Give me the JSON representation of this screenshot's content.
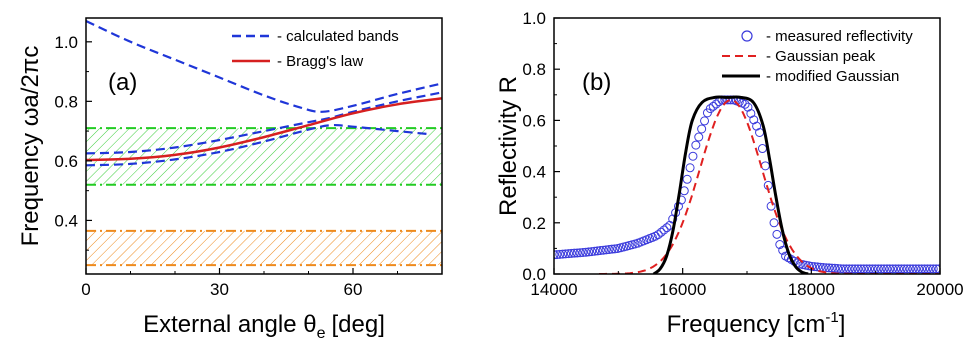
{
  "chart_data": [
    {
      "type": "line",
      "panel_label": "(a)",
      "xlabel": "External angle θ",
      "xlabel_sub": "e",
      "xlabel_unit": "[deg]",
      "ylabel": "Frequency ωa/2πc",
      "xlim": [
        0,
        80
      ],
      "ylim": [
        0.22,
        1.08
      ],
      "xticks": [
        0,
        30,
        60
      ],
      "yticks": [
        0.4,
        0.6,
        0.8,
        1.0
      ],
      "ytick_labels": [
        "0.4",
        "0.6",
        "0.8",
        "1.0"
      ],
      "legend_position": "top-right",
      "legend": [
        {
          "label": "- calculated bands",
          "style": "dashed",
          "color": "#1f36d8"
        },
        {
          "label": "- Bragg's law",
          "style": "solid",
          "color": "#d62020"
        }
      ],
      "series": [
        {
          "name": "- calculated bands",
          "role": "upper band",
          "color": "#1f36d8",
          "style": "dashed",
          "x": [
            0,
            10,
            20,
            30,
            40,
            48,
            53,
            60,
            70,
            80
          ],
          "y": [
            1.07,
            1.0,
            0.94,
            0.88,
            0.82,
            0.78,
            0.765,
            0.785,
            0.825,
            0.86
          ]
        },
        {
          "name": "- calculated bands",
          "role": "band 2",
          "color": "#1f36d8",
          "style": "dashed",
          "x": [
            0,
            10,
            20,
            30,
            40,
            50,
            55,
            60,
            70,
            80
          ],
          "y": [
            0.625,
            0.63,
            0.645,
            0.67,
            0.7,
            0.73,
            0.745,
            0.765,
            0.8,
            0.83
          ]
        },
        {
          "name": "- calculated bands",
          "role": "band 3",
          "color": "#1f36d8",
          "style": "dashed",
          "x": [
            0,
            10,
            20,
            30,
            40,
            50,
            55,
            60,
            70,
            77
          ],
          "y": [
            0.585,
            0.59,
            0.605,
            0.63,
            0.665,
            0.705,
            0.72,
            0.715,
            0.7,
            0.69
          ]
        },
        {
          "name": "- Bragg's law",
          "color": "#d62020",
          "style": "solid",
          "x": [
            0,
            10,
            20,
            30,
            40,
            50,
            60,
            70,
            80
          ],
          "y": [
            0.603,
            0.607,
            0.62,
            0.645,
            0.68,
            0.72,
            0.76,
            0.79,
            0.81
          ]
        }
      ],
      "bands": [
        {
          "color": "#22cc22",
          "y_low": 0.52,
          "y_high": 0.71,
          "hatch": true
        },
        {
          "color": "#ee8a1c",
          "y_low": 0.25,
          "y_high": 0.365,
          "hatch": true
        }
      ]
    },
    {
      "type": "line",
      "panel_label": "(b)",
      "xlabel": "Frequency [cm",
      "xlabel_sup": "-1",
      "xlabel_close": "]",
      "ylabel": "Reflectivity R",
      "xlim": [
        14000,
        20000
      ],
      "ylim": [
        0,
        1.0
      ],
      "xticks": [
        14000,
        16000,
        18000,
        20000
      ],
      "yticks": [
        0.0,
        0.2,
        0.4,
        0.6,
        0.8,
        1.0
      ],
      "ytick_labels": [
        "0.0",
        "0.2",
        "0.4",
        "0.6",
        "0.8",
        "1.0"
      ],
      "legend_position": "top-right",
      "legend": [
        {
          "label": "- measured reflectivity",
          "style": "circle",
          "color": "#3a3adc"
        },
        {
          "label": "- Gaussian peak",
          "style": "dashed",
          "color": "#e02020"
        },
        {
          "label": "- modified Gaussian",
          "style": "solid",
          "color": "#000000"
        }
      ],
      "series": [
        {
          "name": "- measured reflectivity",
          "color": "#3a3adc",
          "style": "circle",
          "x": [
            14000,
            14500,
            15000,
            15300,
            15600,
            15800,
            16000,
            16200,
            16400,
            16600,
            16800,
            17000,
            17200,
            17300,
            17400,
            17500,
            17600,
            17800,
            18000,
            18200,
            18500,
            19000,
            19500,
            20000
          ],
          "y": [
            0.075,
            0.085,
            0.1,
            0.12,
            0.15,
            0.19,
            0.3,
            0.5,
            0.64,
            0.68,
            0.68,
            0.66,
            0.55,
            0.4,
            0.22,
            0.12,
            0.07,
            0.04,
            0.03,
            0.025,
            0.02,
            0.02,
            0.02,
            0.02
          ]
        },
        {
          "name": "- Gaussian peak",
          "color": "#e02020",
          "style": "dashed",
          "center": 16750,
          "sigma": 480,
          "peak": 0.68,
          "x_range": [
            14700,
            20000
          ]
        },
        {
          "name": "- modified Gaussian",
          "color": "#000000",
          "style": "solid",
          "x": [
            15550,
            15650,
            15750,
            15850,
            15950,
            16050,
            16150,
            16300,
            16500,
            16700,
            16900,
            17100,
            17250,
            17350,
            17450,
            17550,
            17650,
            17750,
            17850,
            17950
          ],
          "y": [
            0.0,
            0.02,
            0.07,
            0.17,
            0.32,
            0.48,
            0.6,
            0.67,
            0.69,
            0.69,
            0.69,
            0.67,
            0.58,
            0.45,
            0.3,
            0.17,
            0.08,
            0.03,
            0.008,
            0.0
          ]
        }
      ]
    }
  ]
}
